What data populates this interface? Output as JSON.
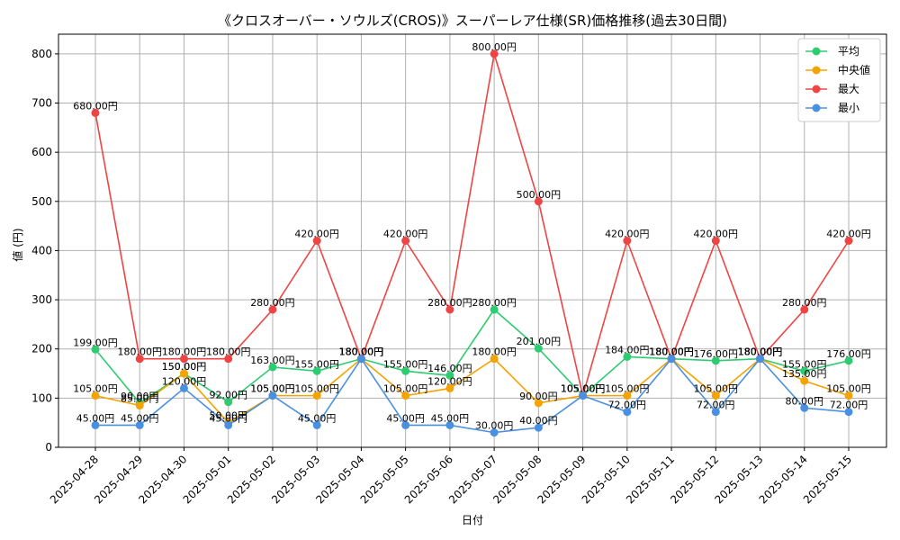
{
  "chart_data": {
    "type": "line",
    "title": "《クロスオーバー・ソウルズ(CROS)》スーパーレア仕様(SR)価格推移(過去30日間)",
    "xlabel": "日付",
    "ylabel": "値 (円)",
    "ylim": [
      0,
      840
    ],
    "yticks": [
      0,
      100,
      200,
      300,
      400,
      500,
      600,
      700,
      800
    ],
    "grid": true,
    "legend_position": "top-right",
    "label_suffix": "円",
    "categories": [
      "2025-04-28",
      "2025-04-29",
      "2025-04-30",
      "2025-05-01",
      "2025-05-02",
      "2025-05-03",
      "2025-05-04",
      "2025-05-05",
      "2025-05-06",
      "2025-05-07",
      "2025-05-08",
      "2025-05-09",
      "2025-05-10",
      "2025-05-11",
      "2025-05-12",
      "2025-05-13",
      "2025-05-14",
      "2025-05-15"
    ],
    "series": [
      {
        "name": "平均",
        "color": "#2ecc71",
        "values": [
          199,
          90,
          150,
          92,
          163,
          155,
          180,
          155,
          146,
          280,
          201,
          105,
          184,
          180,
          176,
          180,
          155,
          176
        ]
      },
      {
        "name": "中央値",
        "color": "#f5a300",
        "values": [
          105,
          85,
          150,
          50,
          105,
          105,
          180,
          105,
          120,
          180,
          90,
          105,
          105,
          180,
          105,
          180,
          135,
          105
        ]
      },
      {
        "name": "最大",
        "color": "#ef4444",
        "values": [
          680,
          180,
          180,
          180,
          280,
          420,
          180,
          420,
          280,
          800,
          500,
          105,
          420,
          180,
          420,
          180,
          280,
          420
        ]
      },
      {
        "name": "最小",
        "color": "#4a90e2",
        "values": [
          45,
          45,
          120,
          45,
          105,
          45,
          180,
          45,
          45,
          30,
          40,
          105,
          72,
          180,
          72,
          180,
          80,
          72
        ]
      }
    ]
  }
}
